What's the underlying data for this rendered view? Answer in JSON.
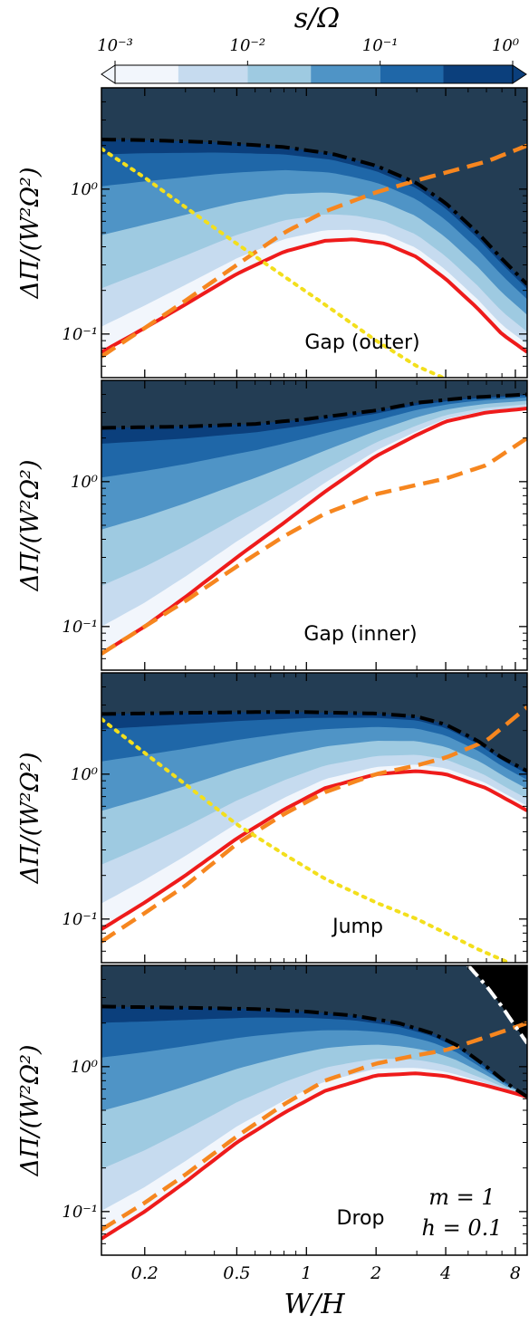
{
  "colorbar": {
    "label": "s/Ω",
    "tick_labels": [
      "10⁻³",
      "10⁻²",
      "10⁻¹",
      "10⁰"
    ],
    "tick_values": [
      0.001,
      0.01,
      0.1,
      1
    ],
    "levels": [
      0.001,
      0.003,
      0.01,
      0.03,
      0.1,
      0.3,
      1
    ],
    "colors": [
      "#f2f6fc",
      "#c6dbef",
      "#9ecae1",
      "#4f94c6",
      "#1f67a8",
      "#0b3f7c"
    ],
    "extend": "both"
  },
  "annotation": {
    "m": "m = 1",
    "h": "h = 0.1"
  },
  "chart_data": [
    {
      "type": "area",
      "title": "Gap (outer)",
      "xlabel": "",
      "ylabel": "ΔΠ/(W²Ω²)",
      "xscale": "log",
      "yscale": "log",
      "xlim": [
        0.13,
        9
      ],
      "ylim": [
        0.05,
        5
      ],
      "yticks": [
        0.1,
        1
      ],
      "ytick_labels": [
        "10⁻¹",
        "10⁰"
      ],
      "xticks": [
        0.2,
        0.5,
        1,
        2,
        4,
        8
      ],
      "xtick_labels": [],
      "series": [
        {
          "name": "",
          "style": "solid-red",
          "x": [
            0.13,
            0.2,
            0.3,
            0.5,
            0.8,
            1.2,
            1.6,
            2.2,
            3,
            4,
            5.5,
            7,
            9
          ],
          "y": [
            0.075,
            0.11,
            0.16,
            0.26,
            0.37,
            0.44,
            0.45,
            0.42,
            0.34,
            0.24,
            0.15,
            0.1,
            0.075
          ]
        },
        {
          "name": "",
          "style": "dash-orange",
          "x": [
            0.13,
            0.2,
            0.3,
            0.5,
            0.8,
            1.2,
            2,
            3,
            4,
            6,
            9
          ],
          "y": [
            0.07,
            0.11,
            0.17,
            0.3,
            0.5,
            0.7,
            0.95,
            1.15,
            1.3,
            1.55,
            2.0
          ]
        },
        {
          "name": "",
          "style": "dashdot-black",
          "x": [
            0.13,
            0.2,
            0.4,
            0.8,
            1.3,
            2,
            3,
            4,
            5.5,
            7,
            9
          ],
          "y": [
            2.2,
            2.18,
            2.1,
            1.95,
            1.75,
            1.45,
            1.1,
            0.8,
            0.5,
            0.33,
            0.22
          ]
        },
        {
          "name": "",
          "style": "dot-yellow",
          "x": [
            0.13,
            0.2,
            0.3,
            0.5,
            0.8,
            1.2,
            2,
            3,
            3.9
          ],
          "y": [
            1.9,
            1.2,
            0.75,
            0.42,
            0.25,
            0.16,
            0.09,
            0.06,
            0.05
          ]
        }
      ]
    },
    {
      "type": "area",
      "title": "Gap (inner)",
      "xlabel": "",
      "ylabel": "ΔΠ/(W²Ω²)",
      "xscale": "log",
      "yscale": "log",
      "xlim": [
        0.13,
        9
      ],
      "ylim": [
        0.05,
        5
      ],
      "yticks": [
        0.1,
        1
      ],
      "ytick_labels": [
        "10⁻¹",
        "10⁰"
      ],
      "xticks": [
        0.2,
        0.5,
        1,
        2,
        4,
        8
      ],
      "xtick_labels": [],
      "series": [
        {
          "name": "",
          "style": "solid-red",
          "x": [
            0.13,
            0.2,
            0.3,
            0.5,
            0.8,
            1.2,
            2,
            3,
            4,
            6,
            9
          ],
          "y": [
            0.065,
            0.1,
            0.16,
            0.3,
            0.52,
            0.85,
            1.5,
            2.1,
            2.6,
            3.0,
            3.2
          ]
        },
        {
          "name": "",
          "style": "dash-orange",
          "x": [
            0.13,
            0.2,
            0.3,
            0.5,
            0.8,
            1.2,
            2,
            3,
            4,
            6,
            9
          ],
          "y": [
            0.065,
            0.1,
            0.15,
            0.26,
            0.42,
            0.6,
            0.82,
            0.95,
            1.05,
            1.3,
            2.0
          ]
        },
        {
          "name": "",
          "style": "dashdot-black",
          "x": [
            0.13,
            0.3,
            0.6,
            1,
            2,
            3,
            5,
            9
          ],
          "y": [
            2.35,
            2.4,
            2.5,
            2.7,
            3.1,
            3.5,
            3.8,
            4.0
          ]
        }
      ]
    },
    {
      "type": "area",
      "title": "Jump",
      "xlabel": "",
      "ylabel": "ΔΠ/(W²Ω²)",
      "xscale": "log",
      "yscale": "log",
      "xlim": [
        0.13,
        9
      ],
      "ylim": [
        0.05,
        5
      ],
      "yticks": [
        0.1,
        1
      ],
      "ytick_labels": [
        "10⁻¹",
        "10⁰"
      ],
      "xticks": [
        0.2,
        0.5,
        1,
        2,
        4,
        8
      ],
      "xtick_labels": [],
      "series": [
        {
          "name": "",
          "style": "solid-red",
          "x": [
            0.13,
            0.2,
            0.3,
            0.5,
            0.8,
            1.2,
            2,
            3,
            4,
            6,
            9
          ],
          "y": [
            0.085,
            0.13,
            0.2,
            0.36,
            0.57,
            0.8,
            1.0,
            1.05,
            1.0,
            0.8,
            0.56
          ]
        },
        {
          "name": "",
          "style": "dash-orange",
          "x": [
            0.13,
            0.2,
            0.3,
            0.5,
            0.8,
            1.2,
            2,
            3,
            4,
            6,
            9
          ],
          "y": [
            0.07,
            0.11,
            0.17,
            0.33,
            0.53,
            0.75,
            1.0,
            1.15,
            1.3,
            1.7,
            2.9
          ]
        },
        {
          "name": "",
          "style": "dashdot-black",
          "x": [
            0.13,
            0.3,
            0.6,
            1,
            2,
            3,
            4,
            5.5,
            7,
            9
          ],
          "y": [
            2.6,
            2.65,
            2.68,
            2.68,
            2.62,
            2.5,
            2.2,
            1.7,
            1.3,
            1.05
          ]
        },
        {
          "name": "",
          "style": "dot-yellow",
          "x": [
            0.13,
            0.2,
            0.3,
            0.5,
            0.8,
            1.2,
            2,
            3,
            4,
            5.5,
            7.5
          ],
          "y": [
            2.4,
            1.4,
            0.85,
            0.45,
            0.28,
            0.19,
            0.13,
            0.1,
            0.08,
            0.062,
            0.05
          ]
        }
      ]
    },
    {
      "type": "area",
      "title": "Drop",
      "xlabel": "W/H",
      "ylabel": "ΔΠ/(W²Ω²)",
      "xscale": "log",
      "yscale": "log",
      "xlim": [
        0.13,
        9
      ],
      "ylim": [
        0.05,
        5
      ],
      "yticks": [
        0.1,
        1
      ],
      "ytick_labels": [
        "10⁻¹",
        "10⁰"
      ],
      "xticks": [
        0.2,
        0.5,
        1,
        2,
        4,
        8
      ],
      "xtick_labels": [
        "0.2",
        "0.5",
        "1",
        "2",
        "4",
        "8"
      ],
      "series": [
        {
          "name": "",
          "style": "solid-red",
          "x": [
            0.13,
            0.2,
            0.3,
            0.5,
            0.8,
            1.2,
            2,
            3,
            4,
            6,
            9
          ],
          "y": [
            0.065,
            0.1,
            0.16,
            0.3,
            0.48,
            0.68,
            0.87,
            0.9,
            0.86,
            0.74,
            0.62
          ]
        },
        {
          "name": "",
          "style": "dash-orange",
          "x": [
            0.13,
            0.2,
            0.3,
            0.5,
            0.8,
            1.2,
            2,
            3,
            4,
            6,
            9
          ],
          "y": [
            0.075,
            0.115,
            0.18,
            0.33,
            0.55,
            0.8,
            1.05,
            1.2,
            1.3,
            1.6,
            2.0
          ]
        },
        {
          "name": "",
          "style": "dashdot-black",
          "x": [
            0.13,
            0.3,
            0.6,
            1,
            1.6,
            2.5,
            3.5,
            4.5,
            6,
            7.5,
            9
          ],
          "y": [
            2.6,
            2.55,
            2.5,
            2.4,
            2.25,
            2.0,
            1.7,
            1.4,
            1.0,
            0.75,
            0.62
          ]
        },
        {
          "name": "",
          "style": "dashdot-white",
          "x": [
            5.0,
            6,
            7,
            8,
            9
          ],
          "y": [
            5.0,
            3.6,
            2.6,
            1.9,
            1.45
          ]
        }
      ]
    }
  ]
}
